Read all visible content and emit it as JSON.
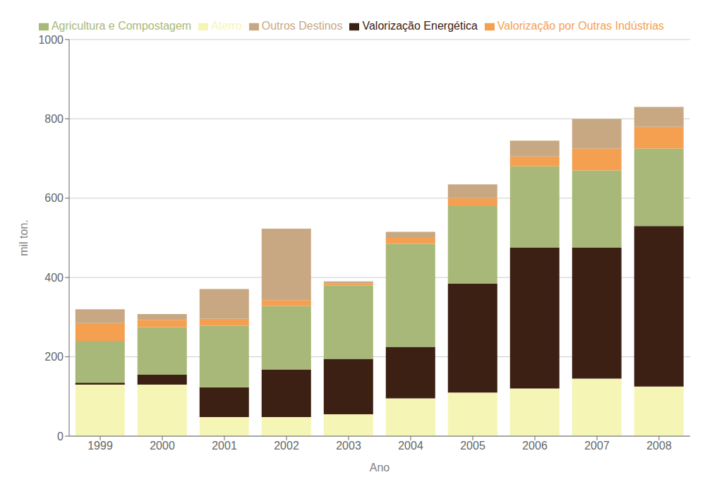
{
  "chart_data": {
    "type": "bar",
    "stacked": true,
    "xlabel": "Ano",
    "ylabel": "mil ton.",
    "categories": [
      "1999",
      "2000",
      "2001",
      "2002",
      "2003",
      "2004",
      "2005",
      "2006",
      "2007",
      "2008"
    ],
    "series": [
      {
        "name": "Aterro",
        "color": "#f5f5b5",
        "values": [
          130,
          130,
          48,
          48,
          55,
          95,
          110,
          120,
          145,
          125
        ]
      },
      {
        "name": "Valorização Energética",
        "color": "#3b2013",
        "values": [
          5,
          25,
          75,
          120,
          140,
          130,
          275,
          355,
          330,
          405
        ]
      },
      {
        "name": "Agricultura e Compostagem",
        "color": "#a8b878",
        "values": [
          105,
          120,
          155,
          160,
          185,
          260,
          195,
          205,
          195,
          195
        ]
      },
      {
        "name": "Valorização por Outras Indústrias",
        "color": "#f5a050",
        "values": [
          45,
          18,
          18,
          15,
          5,
          15,
          20,
          25,
          55,
          55
        ]
      },
      {
        "name": "Outros Destinos",
        "color": "#c8a882",
        "values": [
          35,
          15,
          75,
          180,
          5,
          15,
          35,
          40,
          75,
          50
        ]
      }
    ],
    "ylim": [
      0,
      1000
    ],
    "yticks": [
      0,
      200,
      400,
      600,
      800,
      1000
    ],
    "grid": true,
    "legend": "top"
  }
}
